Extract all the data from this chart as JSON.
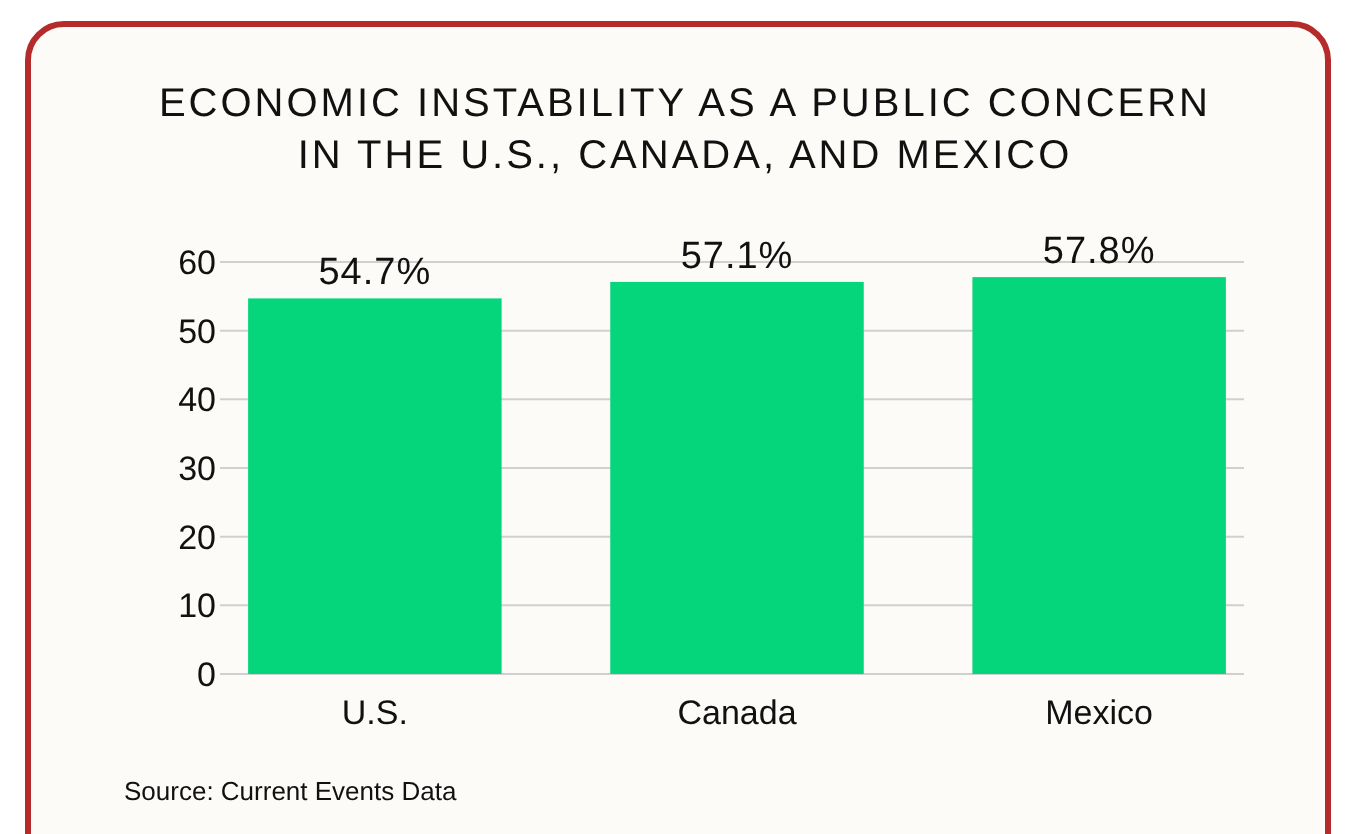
{
  "chart_data": {
    "type": "bar",
    "title": "ECONOMIC INSTABILITY AS A PUBLIC CONCERN\nIN THE U.S., CANADA, AND MEXICO",
    "categories": [
      "U.S.",
      "Canada",
      "Mexico"
    ],
    "values": [
      54.7,
      57.1,
      57.8
    ],
    "value_labels": [
      "54.7%",
      "57.1%",
      "57.8%"
    ],
    "color": "#06d67b",
    "ylim": [
      0,
      60
    ],
    "yticks": [
      0,
      10,
      20,
      30,
      40,
      50,
      60
    ],
    "grid": "y",
    "annotations": [
      "Source: Current Events Data"
    ]
  }
}
